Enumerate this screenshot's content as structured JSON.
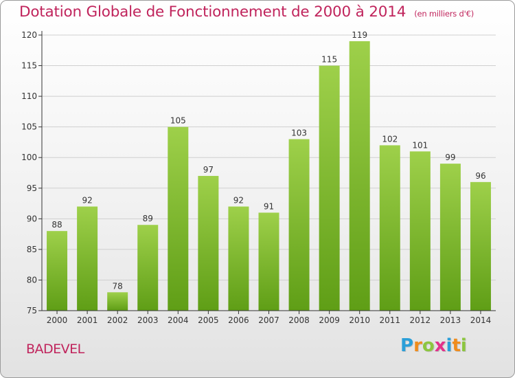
{
  "header": {
    "title": "Dotation Globale de Fonctionnement de 2000 à 2014",
    "subtitle": "(en milliers d'€)"
  },
  "footer": {
    "place": "BADEVEL",
    "logo_letters": [
      "P",
      "r",
      "o",
      "x",
      "i",
      "t",
      "i"
    ],
    "logo_colors": [
      "#2b9fd8",
      "#f08c1c",
      "#8cc63f",
      "#e2328a",
      "#2b9fd8",
      "#f08c1c",
      "#8cc63f"
    ]
  },
  "chart_data": {
    "type": "bar",
    "categories": [
      "2000",
      "2001",
      "2002",
      "2003",
      "2004",
      "2005",
      "2006",
      "2007",
      "2008",
      "2009",
      "2010",
      "2011",
      "2012",
      "2013",
      "2014"
    ],
    "values": [
      88,
      92,
      78,
      89,
      105,
      97,
      92,
      91,
      103,
      115,
      119,
      102,
      101,
      99,
      96
    ],
    "ylim": [
      75,
      120
    ],
    "yticks": [
      75,
      80,
      85,
      90,
      95,
      100,
      105,
      110,
      115,
      120
    ],
    "grid": true,
    "colors": {
      "bar_light": "#9ed04a",
      "bar_dark": "#5f9e16",
      "grid": "#cfcfcf",
      "axis": "#333333",
      "label": "#333333"
    }
  }
}
